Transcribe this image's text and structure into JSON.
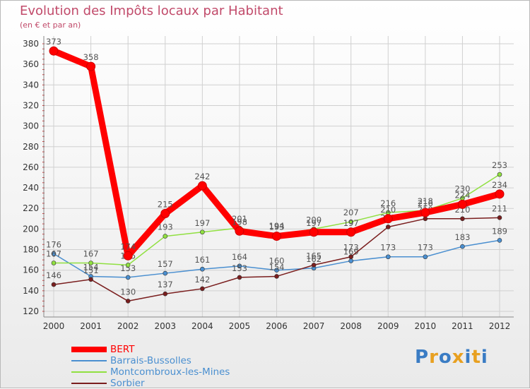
{
  "title": "Evolution des Impôts locaux par Habitant",
  "subtitle": "(en € et par an)",
  "logo_text": "Proxiti",
  "chart_data": {
    "type": "line",
    "categories": [
      "2000",
      "2001",
      "2002",
      "2003",
      "2004",
      "2005",
      "2006",
      "2007",
      "2008",
      "2009",
      "2010",
      "2011",
      "2012"
    ],
    "ylim": [
      120,
      380
    ],
    "yticks": [
      120,
      140,
      160,
      180,
      200,
      220,
      240,
      260,
      280,
      300,
      320,
      340,
      360,
      380
    ],
    "grid": true,
    "legend_position": "bottom-left",
    "series": [
      {
        "name": "BERT",
        "color": "#ff0000",
        "values": [
          373,
          358,
          174,
          215,
          242,
          198,
          193,
          197,
          197,
          210,
          216,
          224,
          234
        ]
      },
      {
        "name": "Barrais-Bussolles",
        "color": "#4a8fd0",
        "values": [
          176,
          154,
          153,
          157,
          161,
          164,
          160,
          162,
          169,
          173,
          173,
          183,
          189
        ]
      },
      {
        "name": "Montcombroux-les-Mines",
        "color": "#90e040",
        "values": [
          167,
          167,
          165,
          193,
          197,
          201,
          194,
          200,
          207,
          216,
          218,
          230,
          253
        ]
      },
      {
        "name": "Sorbier",
        "color": "#7a1e1e",
        "values": [
          146,
          151,
          130,
          137,
          142,
          153,
          154,
          165,
          173,
          202,
          210,
          210,
          211
        ]
      }
    ]
  }
}
